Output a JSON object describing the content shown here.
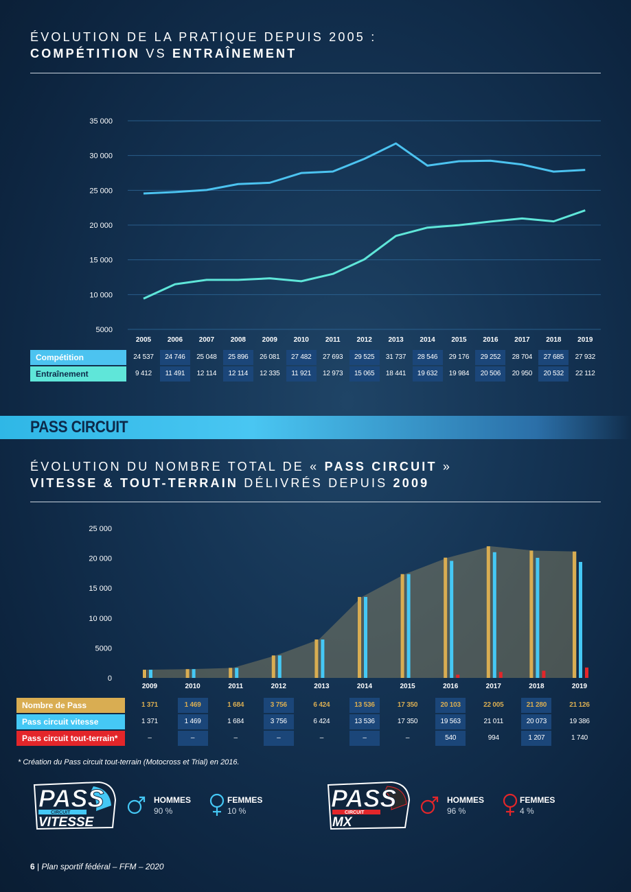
{
  "section1": {
    "title_line1": "ÉVOLUTION DE LA PRATIQUE DEPUIS 2005 :",
    "title_line2_a": "COMPÉTITION",
    "title_line2_b": " VS ",
    "title_line2_c": "ENTRAÎNEMENT"
  },
  "section2": {
    "banner": "PASS CIRCUIT",
    "title_line1_a": "ÉVOLUTION DU NOMBRE TOTAL DE « ",
    "title_line1_b": "PASS CIRCUIT",
    "title_line1_c": " »",
    "title_line2_a": "VITESSE & TOUT-TERRAIN",
    "title_line2_b": " DÉLIVRÉS DEPUIS ",
    "title_line2_c": "2009"
  },
  "footnote": "* Création du Pass circuit tout-terrain (Motocross et Trial) en 2016.",
  "logos": {
    "vitesse": {
      "big": "PASS",
      "small": "CIRCUIT",
      "sub": "VITESSE"
    },
    "mx": {
      "big": "PASS",
      "small": "CIRCUIT",
      "sub": "MX"
    }
  },
  "genders": {
    "vitesse": {
      "men_label": "HOMMES",
      "men_pct": "90 %",
      "women_label": "FEMMES",
      "women_pct": "10 %"
    },
    "mx": {
      "men_label": "HOMMES",
      "men_pct": "96 %",
      "women_label": "FEMMES",
      "women_pct": "4 %"
    }
  },
  "page_footer": {
    "number": "6",
    "separator": " | ",
    "text": "Plan sportif fédéral – FFM – 2020"
  },
  "colors": {
    "competition": "#4cc3f0",
    "entrainement": "#5fe6d9",
    "gold": "#d9ad52",
    "cyan": "#45c8f5",
    "red": "#e3262a"
  },
  "chart_data": [
    {
      "type": "line",
      "x": [
        "2005",
        "2006",
        "2007",
        "2008",
        "2009",
        "2010",
        "2011",
        "2012",
        "2013",
        "2014",
        "2015",
        "2016",
        "2017",
        "2018",
        "2019"
      ],
      "series": [
        {
          "name": "Compétition",
          "values": [
            24537,
            24746,
            25048,
            25896,
            26081,
            27482,
            27693,
            29525,
            31737,
            28546,
            29176,
            29252,
            28704,
            27685,
            27932
          ],
          "labels": [
            "24537",
            "24746",
            "25048",
            "25896",
            "26081",
            "27482",
            "27693",
            "29525",
            "31737",
            "28546",
            "29176",
            "29252",
            "28704",
            "27685",
            "27932"
          ]
        },
        {
          "name": "Entraînement",
          "values": [
            9412,
            11491,
            12114,
            12114,
            12335,
            11921,
            12973,
            15065,
            18441,
            19632,
            19984,
            20506,
            20950,
            20532,
            22112
          ],
          "labels": [
            "9412",
            "11491",
            "12114",
            "12114",
            "12335",
            "11921",
            "12973",
            "15065",
            "18441",
            "19632",
            "19984",
            "20506",
            "20950",
            "20532",
            "22112"
          ]
        }
      ],
      "yticks": [
        "5000",
        "10000",
        "15000",
        "20000",
        "25000",
        "30000",
        "35000"
      ],
      "ylim": [
        5000,
        35000
      ],
      "grid": true
    },
    {
      "type": "bar",
      "x": [
        "2009",
        "2010",
        "2011",
        "2012",
        "2013",
        "2014",
        "2015",
        "2016",
        "2017",
        "2018",
        "2019"
      ],
      "series": [
        {
          "name": "Nombre de Pass",
          "values": [
            1371,
            1469,
            1684,
            3756,
            6424,
            13536,
            17350,
            20103,
            22005,
            21280,
            21126
          ],
          "labels": [
            "1371",
            "1469",
            "1684",
            "3756",
            "6424",
            "13536",
            "17350",
            "20103",
            "22005",
            "21280",
            "21126"
          ]
        },
        {
          "name": "Pass circuit vitesse",
          "values": [
            1371,
            1469,
            1684,
            3756,
            6424,
            13536,
            17350,
            19563,
            21011,
            20073,
            19386
          ],
          "labels": [
            "1371",
            "1469",
            "1684",
            "3756",
            "6424",
            "13536",
            "17350",
            "19563",
            "21011",
            "20073",
            "19386"
          ]
        },
        {
          "name": "Pass circuit tout-terrain*",
          "values": [
            0,
            0,
            0,
            0,
            0,
            0,
            0,
            540,
            994,
            1207,
            1740
          ],
          "labels": [
            "–",
            "–",
            "–",
            "–",
            "–",
            "–",
            "–",
            "540",
            "994",
            "1207",
            "1740"
          ]
        }
      ],
      "yticks": [
        "0",
        "5000",
        "10000",
        "15000",
        "20000",
        "25000"
      ],
      "ylim": [
        0,
        25000
      ],
      "grid": false
    }
  ]
}
